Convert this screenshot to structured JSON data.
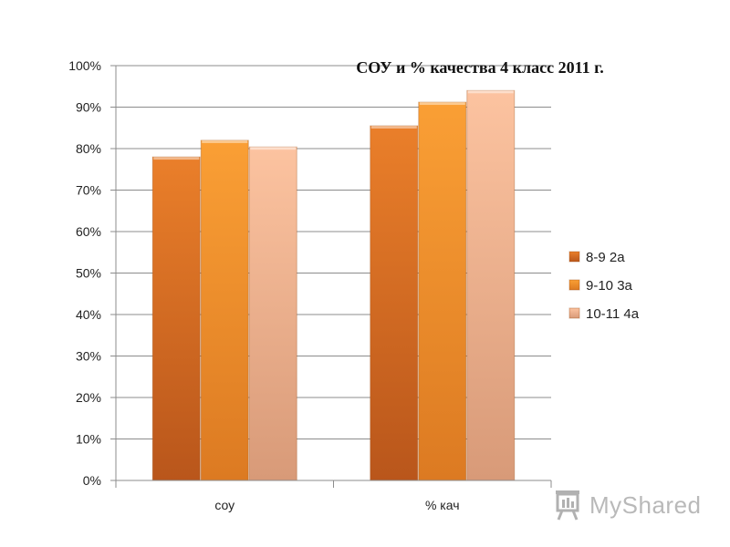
{
  "chart_data": {
    "type": "bar",
    "title": "СОУ и % качества 4 класс 2011 г.",
    "categories": [
      "соу",
      "% кач"
    ],
    "series": [
      {
        "name": "8-9 2а",
        "values": [
          78,
          85.5
        ]
      },
      {
        "name": "9-10 3а",
        "values": [
          82,
          91.2
        ]
      },
      {
        "name": "10-11 4а",
        "values": [
          80.4,
          94
        ]
      }
    ],
    "ylim": [
      0,
      100
    ],
    "yticks": [
      "0%",
      "10%",
      "20%",
      "30%",
      "40%",
      "50%",
      "60%",
      "70%",
      "80%",
      "90%",
      "100%"
    ],
    "xlabel": "",
    "ylabel": "",
    "grid": true,
    "legend_position": "right",
    "colors": [
      "#d2691e",
      "#f39a2e",
      "#f7b992"
    ]
  },
  "watermark": {
    "text": "MyShared",
    "icon": "presentation-board-icon"
  }
}
